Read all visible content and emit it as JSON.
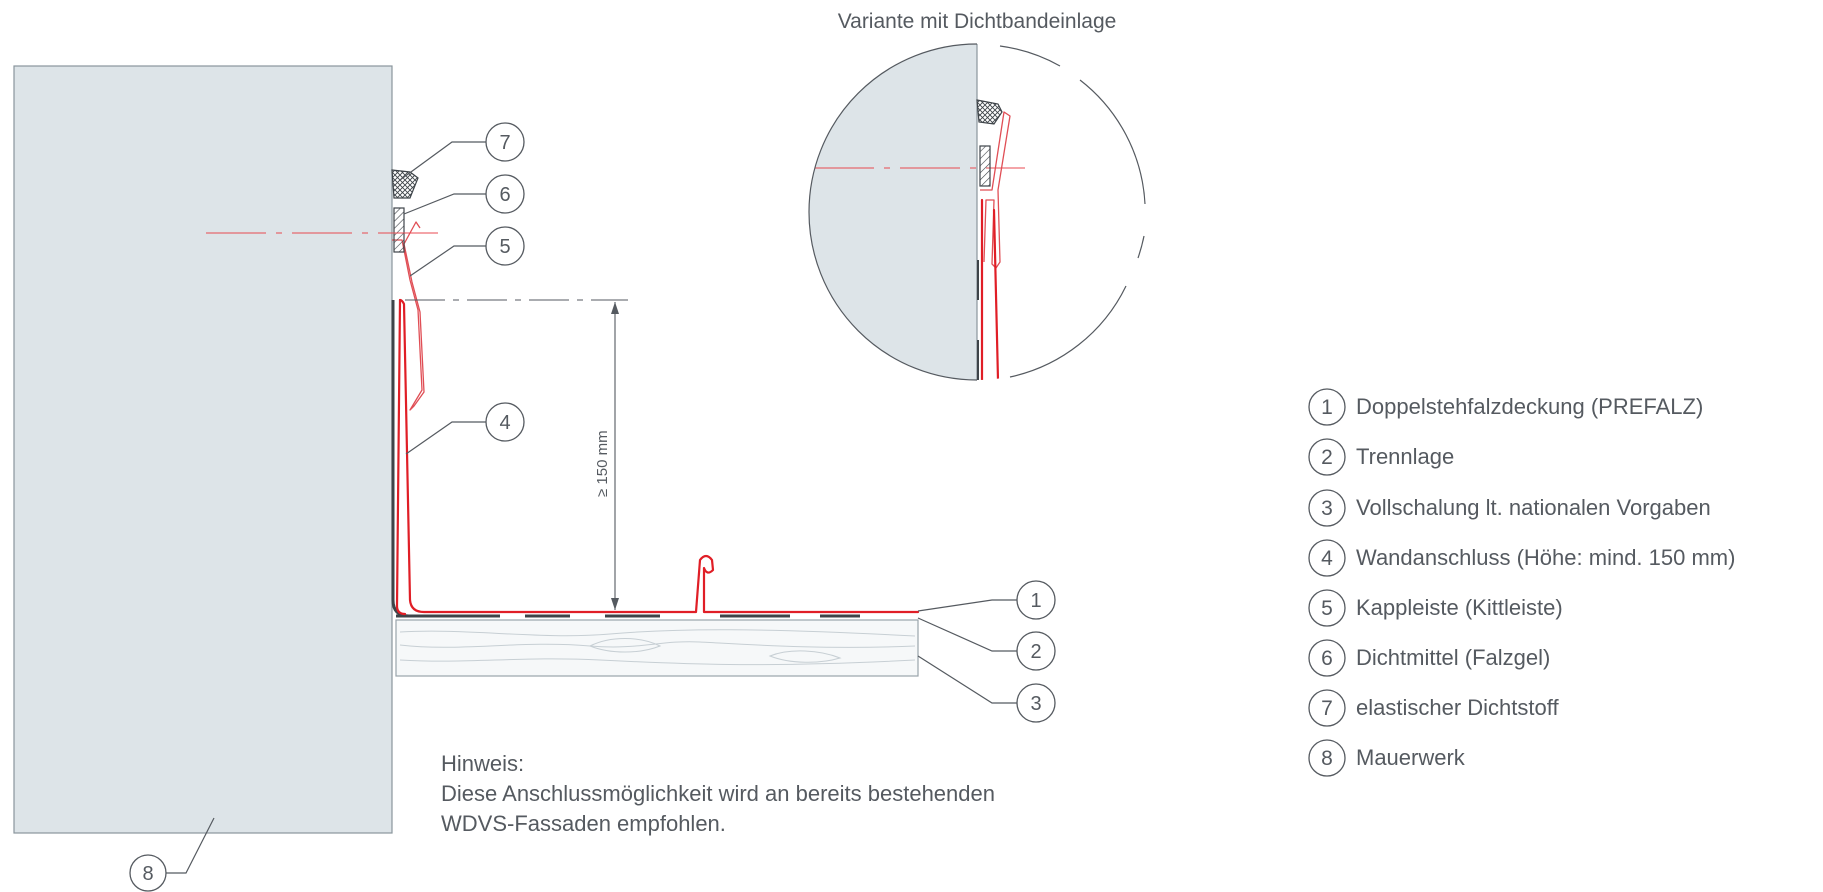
{
  "detail": {
    "title": "Variante mit Dichtbandeinlage"
  },
  "dimension": {
    "label": "≥ 150 mm"
  },
  "callouts": [
    "1",
    "2",
    "3",
    "4",
    "5",
    "6",
    "7",
    "8"
  ],
  "legend": {
    "items": [
      {
        "num": "1",
        "text": "Doppelstehfalzdeckung (PREFALZ)"
      },
      {
        "num": "2",
        "text": "Trennlage"
      },
      {
        "num": "3",
        "text": "Vollschalung lt. nationalen Vorgaben"
      },
      {
        "num": "4",
        "text": "Wandanschluss (Höhe: mind. 150 mm)"
      },
      {
        "num": "5",
        "text": "Kappleiste (Kittleiste)"
      },
      {
        "num": "6",
        "text": "Dichtmittel (Falzgel)"
      },
      {
        "num": "7",
        "text": "elastischer Dichtstoff"
      },
      {
        "num": "8",
        "text": "Mauerwerk"
      }
    ]
  },
  "note": {
    "heading": "Hinweis:",
    "line1": "Diese Anschlussmöglichkeit wird an bereits bestehenden",
    "line2": "WDVS-Fassaden empfohlen."
  },
  "colors": {
    "wall": "#dde4e8",
    "sheet_metal": "#e01e26",
    "lines": "#555a60"
  }
}
